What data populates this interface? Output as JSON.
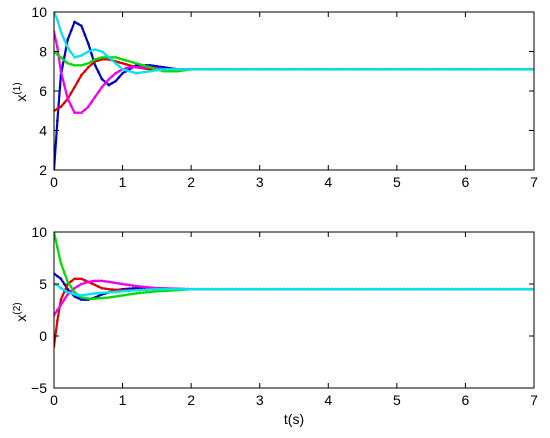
{
  "chart_data": [
    {
      "type": "line",
      "ylabel": "x",
      "ylabel_superscript": "(1)",
      "xlabel": "",
      "xlim": [
        0,
        7
      ],
      "ylim": [
        2,
        10
      ],
      "xticks": [
        "0",
        "1",
        "2",
        "3",
        "4",
        "5",
        "6",
        "7"
      ],
      "yticks": [
        "2",
        "4",
        "6",
        "8",
        "10"
      ],
      "grid": false,
      "markers": "small dots",
      "series": [
        {
          "color": "#0000cc",
          "x": [
            0,
            0.05,
            0.1,
            0.2,
            0.3,
            0.4,
            0.5,
            0.6,
            0.7,
            0.8,
            0.9,
            1.0,
            1.1,
            1.2,
            1.4,
            1.6,
            1.8,
            2.0,
            2.5,
            3,
            7
          ],
          "y": [
            2.0,
            4.5,
            6.8,
            8.6,
            9.5,
            9.3,
            8.4,
            7.3,
            6.6,
            6.3,
            6.5,
            6.9,
            7.1,
            7.3,
            7.3,
            7.2,
            7.1,
            7.1,
            7.1,
            7.1,
            7.1
          ]
        },
        {
          "color": "#e00000",
          "x": [
            0,
            0.1,
            0.2,
            0.3,
            0.4,
            0.5,
            0.6,
            0.7,
            0.8,
            0.9,
            1.0,
            1.2,
            1.4,
            1.6,
            2.0,
            2.5,
            3,
            7
          ],
          "y": [
            5.0,
            5.2,
            5.6,
            6.2,
            6.8,
            7.2,
            7.5,
            7.6,
            7.6,
            7.5,
            7.4,
            7.2,
            7.1,
            7.1,
            7.1,
            7.1,
            7.1,
            7.1
          ]
        },
        {
          "color": "#ee00ee",
          "x": [
            0,
            0.05,
            0.1,
            0.2,
            0.3,
            0.4,
            0.5,
            0.6,
            0.7,
            0.8,
            0.9,
            1.0,
            1.1,
            1.2,
            1.4,
            1.6,
            2.0,
            3,
            7
          ],
          "y": [
            9.0,
            8.2,
            7.0,
            5.6,
            4.9,
            4.9,
            5.2,
            5.7,
            6.2,
            6.6,
            6.9,
            7.1,
            7.2,
            7.2,
            7.2,
            7.1,
            7.1,
            7.1,
            7.1
          ]
        },
        {
          "color": "#00dd00",
          "x": [
            0,
            0.1,
            0.2,
            0.3,
            0.4,
            0.5,
            0.6,
            0.7,
            0.8,
            0.9,
            1.0,
            1.2,
            1.4,
            1.6,
            1.8,
            2.0,
            2.5,
            3,
            7
          ],
          "y": [
            8.0,
            7.7,
            7.4,
            7.3,
            7.3,
            7.4,
            7.6,
            7.7,
            7.7,
            7.7,
            7.6,
            7.4,
            7.2,
            7.0,
            7.0,
            7.1,
            7.1,
            7.1,
            7.1
          ]
        },
        {
          "color": "#00e5ee",
          "x": [
            0,
            0.05,
            0.1,
            0.2,
            0.3,
            0.4,
            0.5,
            0.6,
            0.7,
            0.8,
            0.9,
            1.0,
            1.2,
            1.4,
            1.6,
            1.8,
            2.0,
            2.5,
            3,
            7
          ],
          "y": [
            10.0,
            9.6,
            9.0,
            8.2,
            7.7,
            7.8,
            8.0,
            8.1,
            8.0,
            7.7,
            7.4,
            7.1,
            6.9,
            7.0,
            7.1,
            7.1,
            7.1,
            7.1,
            7.1,
            7.1
          ]
        }
      ]
    },
    {
      "type": "line",
      "ylabel": "x",
      "ylabel_superscript": "(2)",
      "xlabel": "t(s)",
      "xlim": [
        0,
        7
      ],
      "ylim": [
        -5,
        10
      ],
      "xticks": [
        "0",
        "1",
        "2",
        "3",
        "4",
        "5",
        "6",
        "7"
      ],
      "yticks": [
        "−5",
        "0",
        "5",
        "10"
      ],
      "grid": false,
      "markers": "small dots",
      "series": [
        {
          "color": "#0000cc",
          "x": [
            0,
            0.1,
            0.2,
            0.3,
            0.4,
            0.5,
            0.6,
            0.7,
            0.8,
            0.9,
            1.0,
            1.2,
            1.5,
            2.0,
            3,
            7
          ],
          "y": [
            6.0,
            5.5,
            4.5,
            3.8,
            3.5,
            3.5,
            3.7,
            4.0,
            4.2,
            4.4,
            4.5,
            4.6,
            4.6,
            4.5,
            4.5,
            4.5
          ]
        },
        {
          "color": "#e00000",
          "x": [
            0,
            0.05,
            0.1,
            0.2,
            0.3,
            0.4,
            0.5,
            0.6,
            0.7,
            0.8,
            1.0,
            1.2,
            1.5,
            2.0,
            3,
            7
          ],
          "y": [
            -1.0,
            1.5,
            3.5,
            5.0,
            5.5,
            5.5,
            5.2,
            4.9,
            4.6,
            4.5,
            4.4,
            4.4,
            4.5,
            4.5,
            4.5,
            4.5
          ]
        },
        {
          "color": "#ee00ee",
          "x": [
            0,
            0.1,
            0.2,
            0.3,
            0.4,
            0.5,
            0.6,
            0.7,
            0.8,
            0.9,
            1.0,
            1.2,
            1.5,
            2.0,
            3,
            7
          ],
          "y": [
            2.0,
            3.0,
            4.0,
            4.6,
            5.0,
            5.2,
            5.3,
            5.3,
            5.2,
            5.1,
            5.0,
            4.8,
            4.6,
            4.5,
            4.5,
            4.5
          ]
        },
        {
          "color": "#00dd00",
          "x": [
            0,
            0.05,
            0.1,
            0.2,
            0.3,
            0.4,
            0.5,
            0.6,
            0.8,
            1.0,
            1.2,
            1.5,
            1.8,
            2.0,
            2.5,
            3,
            7
          ],
          "y": [
            10.0,
            8.5,
            7.0,
            5.2,
            4.2,
            3.7,
            3.6,
            3.6,
            3.7,
            3.9,
            4.1,
            4.3,
            4.4,
            4.5,
            4.5,
            4.5,
            4.5
          ]
        },
        {
          "color": "#00e5ee",
          "x": [
            0,
            0.05,
            0.1,
            0.2,
            0.3,
            0.4,
            0.5,
            0.6,
            0.8,
            1.0,
            1.2,
            1.5,
            2.0,
            3,
            7
          ],
          "y": [
            5.0,
            4.9,
            4.6,
            4.2,
            4.0,
            3.9,
            4.0,
            4.1,
            4.2,
            4.3,
            4.4,
            4.5,
            4.5,
            4.5,
            4.5
          ]
        }
      ]
    }
  ]
}
